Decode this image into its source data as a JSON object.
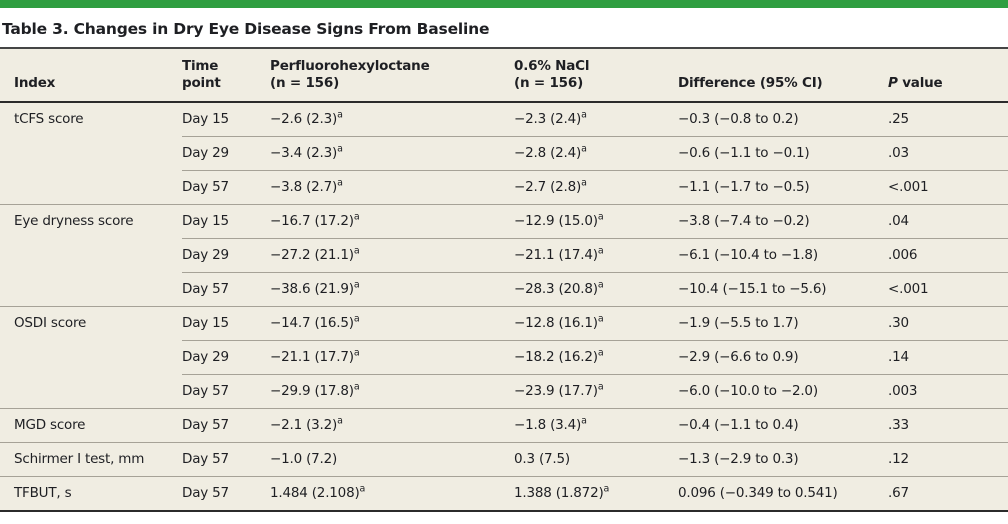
{
  "title": "Table 3. Changes in Dry Eye Disease Signs From Baseline",
  "colors": {
    "accent_green": "#2f9e41",
    "table_background": "#f0ede2",
    "rule_dark": "#2b2b2b",
    "row_line_gray": "#a6a297",
    "text": "#1e1f23"
  },
  "columns": {
    "index": "Index",
    "time_line1": "Time",
    "time_line2": "point",
    "drug_line1": "Perfluorohexyloctane",
    "drug_line2": "(n = 156)",
    "nacl_line1": "0.6% NaCl",
    "nacl_line2": "(n = 156)",
    "difference": "Difference (95% CI)",
    "p_italic": "P",
    "p_rest": " value"
  },
  "table": {
    "rows": [
      {
        "index": "tCFS score",
        "time": "Day 15",
        "drug": {
          "v": "−2.6 (2.3)",
          "s": "a"
        },
        "nacl": {
          "v": "−2.3 (2.4)",
          "s": "a"
        },
        "diff": "−0.3 (−0.8 to 0.2)",
        "p": ".25"
      },
      {
        "index": "",
        "time": "Day 29",
        "drug": {
          "v": "−3.4 (2.3)",
          "s": "a"
        },
        "nacl": {
          "v": "−2.8 (2.4)",
          "s": "a"
        },
        "diff": "−0.6 (−1.1 to −0.1)",
        "p": ".03"
      },
      {
        "index": "",
        "time": "Day 57",
        "drug": {
          "v": "−3.8 (2.7)",
          "s": "a"
        },
        "nacl": {
          "v": "−2.7 (2.8)",
          "s": "a"
        },
        "diff": "−1.1 (−1.7 to −0.5)",
        "p": "<.001"
      },
      {
        "index": "Eye dryness score",
        "time": "Day 15",
        "drug": {
          "v": "−16.7 (17.2)",
          "s": "a"
        },
        "nacl": {
          "v": "−12.9 (15.0)",
          "s": "a"
        },
        "diff": "−3.8 (−7.4 to −0.2)",
        "p": ".04"
      },
      {
        "index": "",
        "time": "Day 29",
        "drug": {
          "v": "−27.2 (21.1)",
          "s": "a"
        },
        "nacl": {
          "v": "−21.1 (17.4)",
          "s": "a"
        },
        "diff": "−6.1 (−10.4 to −1.8)",
        "p": ".006"
      },
      {
        "index": "",
        "time": "Day 57",
        "drug": {
          "v": "−38.6 (21.9)",
          "s": "a"
        },
        "nacl": {
          "v": "−28.3 (20.8)",
          "s": "a"
        },
        "diff": "−10.4 (−15.1 to −5.6)",
        "p": "<.001"
      },
      {
        "index": "OSDI score",
        "time": "Day 15",
        "drug": {
          "v": "−14.7 (16.5)",
          "s": "a"
        },
        "nacl": {
          "v": "−12.8 (16.1)",
          "s": "a"
        },
        "diff": "−1.9 (−5.5 to 1.7)",
        "p": ".30"
      },
      {
        "index": "",
        "time": "Day 29",
        "drug": {
          "v": "−21.1 (17.7)",
          "s": "a"
        },
        "nacl": {
          "v": "−18.2 (16.2)",
          "s": "a"
        },
        "diff": "−2.9 (−6.6 to 0.9)",
        "p": ".14"
      },
      {
        "index": "",
        "time": "Day 57",
        "drug": {
          "v": "−29.9 (17.8)",
          "s": "a"
        },
        "nacl": {
          "v": "−23.9 (17.7)",
          "s": "a"
        },
        "diff": "−6.0 (−10.0 to −2.0)",
        "p": ".003"
      },
      {
        "index": "MGD score",
        "time": "Day 57",
        "drug": {
          "v": "−2.1 (3.2)",
          "s": "a"
        },
        "nacl": {
          "v": "−1.8 (3.4)",
          "s": "a"
        },
        "diff": "−0.4 (−1.1 to 0.4)",
        "p": ".33"
      },
      {
        "index": "Schirmer I test, mm",
        "time": "Day 57",
        "drug": {
          "v": "−1.0 (7.2)",
          "s": ""
        },
        "nacl": {
          "v": "0.3 (7.5)",
          "s": ""
        },
        "diff": "−1.3 (−2.9 to 0.3)",
        "p": ".12"
      },
      {
        "index": "TFBUT, s",
        "time": "Day 57",
        "drug": {
          "v": "1.484 (2.108)",
          "s": "a"
        },
        "nacl": {
          "v": "1.388 (1.872)",
          "s": "a"
        },
        "diff": "0.096 (−0.349 to 0.541)",
        "p": ".67"
      }
    ]
  }
}
